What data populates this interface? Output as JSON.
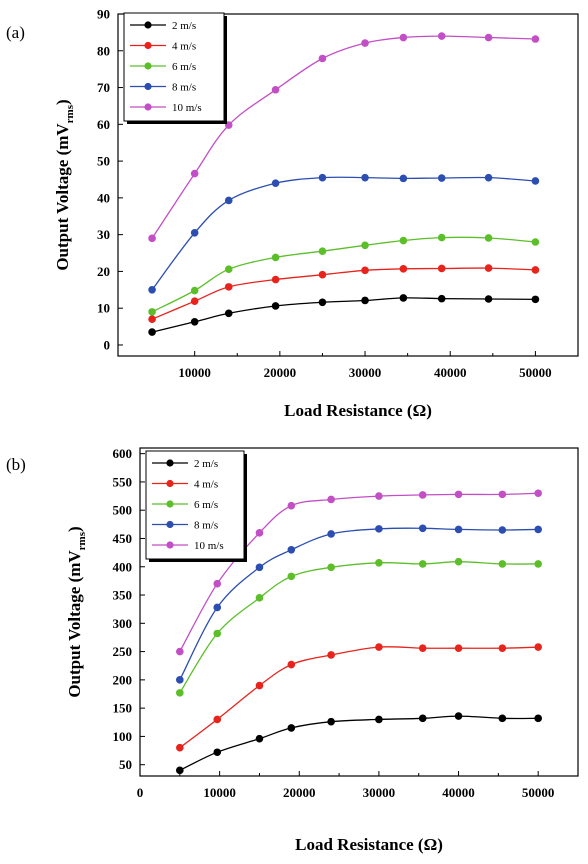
{
  "chart_data": [
    {
      "type": "line",
      "panel_label": "(a)",
      "xlabel": "Load Resistance (Ω)",
      "ylabel_main": "Output Voltage (mV",
      "ylabel_sub": "rms",
      "ylabel_end": ")",
      "xlim": [
        1000,
        55000
      ],
      "ylim": [
        -3,
        90
      ],
      "x_ticks": [
        10000,
        20000,
        30000,
        40000,
        50000
      ],
      "x_tick_labels": [
        "10000",
        "20000",
        "30000",
        "40000",
        "50000"
      ],
      "y_ticks": [
        0,
        10,
        20,
        30,
        40,
        50,
        60,
        70,
        80,
        90
      ],
      "y_tick_labels": [
        "0",
        "10",
        "20",
        "30",
        "40",
        "50",
        "60",
        "70",
        "80",
        "90"
      ],
      "legend_position": "top-left",
      "x": [
        5000,
        10000,
        14000,
        19500,
        25000,
        30000,
        34500,
        39000,
        44500,
        50000
      ],
      "series": [
        {
          "name": "2 m/s",
          "color": "#000000",
          "values": [
            3.5,
            6.3,
            8.6,
            10.6,
            11.6,
            12.1,
            12.8,
            12.6,
            12.5,
            12.4
          ]
        },
        {
          "name": "4 m/s",
          "color": "#e8231c",
          "values": [
            7.0,
            11.9,
            15.8,
            17.8,
            19.1,
            20.3,
            20.7,
            20.8,
            20.9,
            20.4
          ]
        },
        {
          "name": "6 m/s",
          "color": "#5cbf2a",
          "values": [
            9.0,
            14.8,
            20.6,
            23.8,
            25.5,
            27.1,
            28.4,
            29.2,
            29.1,
            28.0
          ]
        },
        {
          "name": "8 m/s",
          "color": "#2b4eb0",
          "values": [
            15.0,
            30.5,
            39.3,
            44.0,
            45.5,
            45.5,
            45.3,
            45.4,
            45.5,
            44.6
          ]
        },
        {
          "name": "10 m/s",
          "color": "#c24fc6",
          "values": [
            29.0,
            46.6,
            59.8,
            69.4,
            77.9,
            82.1,
            83.6,
            84.0,
            83.6,
            83.2
          ]
        }
      ]
    },
    {
      "type": "line",
      "panel_label": "(b)",
      "xlabel": "Load Resistance (Ω)",
      "ylabel_main": "Output Voltage (mV",
      "ylabel_sub": "rms",
      "ylabel_end": ")",
      "xlim": [
        0,
        55000
      ],
      "ylim": [
        30,
        610
      ],
      "x_ticks": [
        0,
        10000,
        20000,
        30000,
        40000,
        50000
      ],
      "x_tick_labels": [
        "0",
        "10000",
        "20000",
        "30000",
        "40000",
        "50000"
      ],
      "y_ticks": [
        50,
        100,
        150,
        200,
        250,
        300,
        350,
        400,
        450,
        500,
        550,
        600
      ],
      "y_tick_labels": [
        "50",
        "100",
        "150",
        "200",
        "250",
        "300",
        "350",
        "400",
        "450",
        "500",
        "550",
        "600"
      ],
      "legend_position": "top-left",
      "x": [
        5000,
        9700,
        15000,
        19000,
        24000,
        30000,
        35500,
        40000,
        45500,
        50000
      ],
      "series": [
        {
          "name": "2 m/s",
          "color": "#000000",
          "values": [
            40,
            72,
            96,
            115,
            126,
            130,
            132,
            136,
            132,
            132
          ]
        },
        {
          "name": "4 m/s",
          "color": "#e8231c",
          "values": [
            80,
            130,
            190,
            227,
            244,
            258,
            256,
            256,
            256,
            258
          ]
        },
        {
          "name": "6 m/s",
          "color": "#5cbf2a",
          "values": [
            177,
            282,
            345,
            383,
            399,
            407,
            405,
            409,
            405,
            405
          ]
        },
        {
          "name": "8 m/s",
          "color": "#2b4eb0",
          "values": [
            200,
            328,
            399,
            430,
            458,
            467,
            468,
            466,
            465,
            466
          ]
        },
        {
          "name": "10 m/s",
          "color": "#c24fc6",
          "values": [
            250,
            370,
            460,
            508,
            519,
            525,
            527,
            528,
            528,
            530
          ]
        }
      ]
    }
  ]
}
